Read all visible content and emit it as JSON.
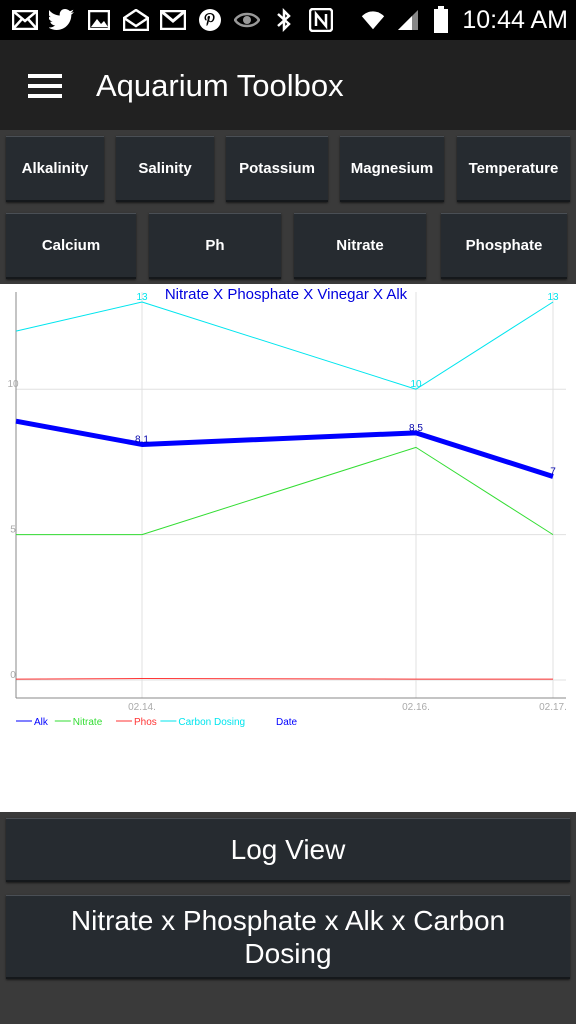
{
  "status_bar": {
    "time": "10:44 AM",
    "icons": [
      "mail-icon",
      "twitter-icon",
      "gallery-icon",
      "email-open-icon",
      "gmail-icon",
      "pinterest-icon",
      "eye-icon",
      "bluetooth-icon",
      "nfc-icon",
      "wifi-icon",
      "signal-icon",
      "battery-icon"
    ]
  },
  "app_bar": {
    "title": "Aquarium Toolbox",
    "menu_icon": "hamburger-menu-icon"
  },
  "parameter_buttons": {
    "row1": [
      "Alkalinity",
      "Salinity",
      "Potassium",
      "Magnesium",
      "Temperature"
    ],
    "row2": [
      "Calcium",
      "Ph",
      "Nitrate",
      "Phosphate"
    ]
  },
  "chart_data": {
    "type": "line",
    "title": "Nitrate X Phosphate X Vinegar X Alk",
    "x_categories": [
      "",
      "02.14.",
      "02.16.",
      "02.17."
    ],
    "y_ticks": [
      "0",
      "5",
      "10"
    ],
    "ylim": [
      0,
      13
    ],
    "grid": true,
    "series": [
      {
        "name": "Alk",
        "color": "#0000ff",
        "values": [
          8.9,
          8.1,
          8.5,
          7
        ],
        "labels": [
          "",
          "8.1",
          "8.5",
          "7"
        ]
      },
      {
        "name": "Nitrate",
        "color": "#33dd33",
        "values": [
          5,
          5,
          8,
          5
        ],
        "labels": [
          "",
          "",
          "",
          ""
        ]
      },
      {
        "name": "Phos",
        "color": "#ff3333",
        "values": [
          0.03,
          0.05,
          0.03,
          0.03
        ],
        "labels": [
          "",
          "",
          "",
          ""
        ]
      },
      {
        "name": "Carbon Dosing",
        "color": "#00e5ee",
        "values": [
          12,
          13,
          10,
          13
        ],
        "labels": [
          "",
          "13",
          "10",
          "13"
        ]
      }
    ],
    "legend_extra": "Date",
    "legend_extra_color": "#0000ff",
    "legend_placement": "bottom-left"
  },
  "buttons": {
    "log_view": "Log View",
    "nitrate_chart": "Nitrate x Phosphate x Alk x Carbon Dosing"
  }
}
